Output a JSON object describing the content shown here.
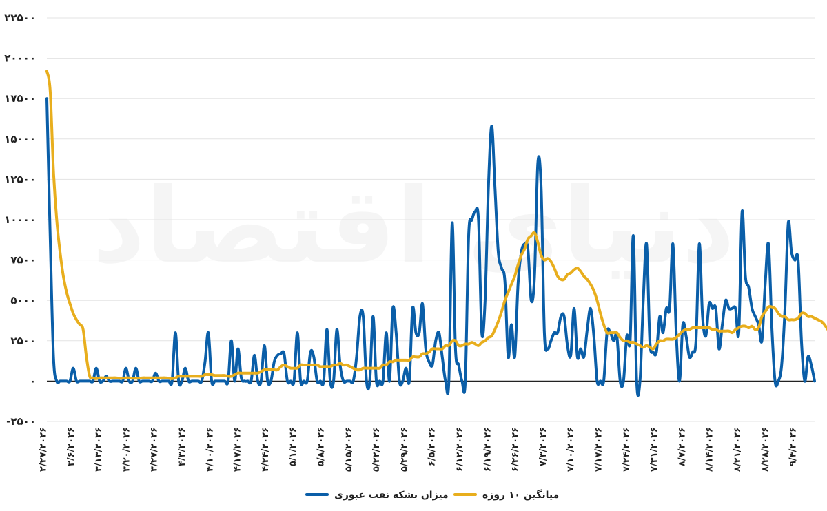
{
  "colors": {
    "blue": "#0A5EA8",
    "gold": "#E8AE1D",
    "grid": "#E3E3E3",
    "axis": "#222222"
  },
  "watermark": "دنیای اقتصاد",
  "chart_data": {
    "type": "line",
    "title": "",
    "xlabel": "",
    "ylabel": "",
    "ylim": [
      -2500,
      22500
    ],
    "grid": true,
    "legend_position": "bottom",
    "y_ticks": [
      -2500,
      0,
      2500,
      5000,
      7500,
      10000,
      12500,
      15000,
      17500,
      20000,
      22500
    ],
    "y_tick_labels": [
      "-۲۵۰۰",
      "۰",
      "۲۵۰۰",
      "۵۰۰۰",
      "۷۵۰۰",
      "۱۰۰۰۰",
      "۱۲۵۰۰",
      "۱۵۰۰۰",
      "۱۷۵۰۰",
      "۲۰۰۰۰",
      "۲۲۵۰۰"
    ],
    "x_tick_labels": [
      "۲/۲۷/۲۰۲۶",
      "۳/۶/۲۰۲۶",
      "۳/۱۳/۲۰۲۶",
      "۳/۲۰/۲۰۲۶",
      "۳/۲۷/۲۰۲۶",
      "۴/۳/۲۰۲۶",
      "۴/۱۰/۲۰۲۶",
      "۴/۱۷/۲۰۲۶",
      "۴/۲۴/۲۰۲۶",
      "۵/۱/۲۰۲۶",
      "۵/۸/۲۰۲۶",
      "۵/۱۵/۲۰۲۶",
      "۵/۲۲/۲۰۲۶",
      "۵/۲۹/۲۰۲۶",
      "۶/۵/۲۰۲۶",
      "۶/۱۲/۲۰۲۶",
      "۶/۱۹/۲۰۲۶",
      "۶/۲۶/۲۰۲۶",
      "۷/۳/۲۰۲۶",
      "۷/۱۰/۲۰۲۶",
      "۷/۱۷/۲۰۲۶",
      "۷/۲۴/۲۰۲۶",
      "۷/۳۱/۲۰۲۶",
      "۸/۷/۲۰۲۶",
      "۸/۱۴/۲۰۲۶",
      "۸/۲۱/۲۰۲۶",
      "۸/۲۸/۲۰۲۶",
      "۹/۴/۲۰۲۶"
    ],
    "series": [
      {
        "name": "میزان بشکه نفت عبوری",
        "color": "#0A5EA8",
        "values": [
          17500,
          9000,
          1500,
          0,
          0,
          0,
          0,
          0,
          800,
          0,
          0,
          0,
          0,
          0,
          0,
          800,
          0,
          0,
          300,
          0,
          0,
          0,
          0,
          0,
          800,
          0,
          0,
          800,
          0,
          0,
          0,
          0,
          0,
          500,
          0,
          0,
          0,
          0,
          0,
          3000,
          0,
          0,
          800,
          0,
          0,
          0,
          0,
          0,
          1200,
          3000,
          0,
          0,
          0,
          0,
          0,
          0,
          2500,
          0,
          2000,
          200,
          0,
          0,
          0,
          1600,
          0,
          0,
          2200,
          0,
          0,
          1200,
          1600,
          1700,
          1700,
          0,
          0,
          0,
          3000,
          0,
          0,
          0,
          1800,
          1500,
          0,
          0,
          0,
          3200,
          0,
          0,
          3200,
          1000,
          0,
          0,
          0,
          0,
          1500,
          4000,
          4000,
          0,
          0,
          4000,
          0,
          0,
          0,
          3000,
          0,
          4500,
          3000,
          0,
          0,
          800,
          0,
          4500,
          3000,
          3000,
          4800,
          2000,
          1200,
          1000,
          2500,
          3000,
          1500,
          0,
          0,
          9800,
          2000,
          1000,
          0,
          0,
          9000,
          10000,
          10500,
          10000,
          3000,
          5000,
          12000,
          15800,
          12000,
          8000,
          7000,
          6200,
          1500,
          3500,
          1500,
          6000,
          8000,
          8500,
          8200,
          5000,
          6500,
          13500,
          12000,
          3000,
          2000,
          2500,
          3000,
          3000,
          4000,
          4000,
          2200,
          1600,
          4500,
          1500,
          2000,
          1500,
          3200,
          4500,
          2800,
          0,
          0,
          0,
          3000,
          3000,
          2500,
          2800,
          0,
          0,
          2800,
          2500,
          9000,
          0,
          0,
          5000,
          8500,
          2500,
          1800,
          1800,
          4000,
          3000,
          4500,
          4500,
          8500,
          3000,
          0,
          3500,
          2800,
          1500,
          1800,
          2500,
          8500,
          4000,
          2800,
          4800,
          4500,
          4500,
          2000,
          3500,
          5000,
          4500,
          4500,
          4500,
          3000,
          10500,
          6500,
          5800,
          4500,
          4000,
          3500,
          2500,
          6000,
          8500,
          3500,
          0,
          0,
          1000,
          4500,
          9800,
          8000,
          7500,
          7500,
          2500,
          0,
          1500,
          1000,
          0
        ]
      },
      {
        "name": "میانگین ۱۰ روزه",
        "color": "#E8AE1D",
        "values": [
          19200,
          18000,
          13000,
          10000,
          8000,
          6500,
          5500,
          4800,
          4200,
          3800,
          3500,
          3200,
          1500,
          300,
          200,
          150,
          200,
          200,
          200,
          200,
          200,
          200,
          180,
          180,
          200,
          200,
          180,
          180,
          180,
          200,
          200,
          200,
          200,
          200,
          200,
          200,
          200,
          180,
          150,
          200,
          300,
          300,
          300,
          300,
          300,
          300,
          300,
          300,
          400,
          400,
          400,
          350,
          350,
          350,
          350,
          300,
          300,
          400,
          500,
          500,
          500,
          500,
          500,
          500,
          500,
          600,
          700,
          700,
          700,
          700,
          700,
          900,
          1000,
          900,
          800,
          800,
          800,
          1000,
          1000,
          1000,
          1000,
          1000,
          1000,
          900,
          900,
          900,
          900,
          1000,
          1000,
          1100,
          1000,
          1000,
          900,
          800,
          700,
          700,
          800,
          800,
          800,
          800,
          800,
          800,
          1000,
          1000,
          1200,
          1200,
          1300,
          1300,
          1300,
          1300,
          1300,
          1500,
          1500,
          1500,
          1700,
          1700,
          1800,
          2000,
          2000,
          2000,
          2000,
          2200,
          2200,
          2500,
          2500,
          2200,
          2200,
          2300,
          2300,
          2400,
          2300,
          2200,
          2400,
          2500,
          2700,
          2800,
          3200,
          3700,
          4300,
          5000,
          5500,
          6000,
          6500,
          7200,
          7800,
          8200,
          8800,
          9000,
          9200,
          8600,
          7800,
          7500,
          7600,
          7400,
          7000,
          6500,
          6300,
          6300,
          6600,
          6700,
          6900,
          7000,
          6800,
          6500,
          6300,
          6000,
          5600,
          5000,
          4200,
          3500,
          3000,
          3000,
          3000,
          3000,
          2700,
          2500,
          2500,
          2400,
          2400,
          2300,
          2200,
          2100,
          2200,
          2100,
          2000,
          2300,
          2500,
          2500,
          2600,
          2600,
          2600,
          2700,
          2900,
          3100,
          3200,
          3200,
          3300,
          3300,
          3300,
          3300,
          3300,
          3300,
          3200,
          3200,
          3100,
          3100,
          3100,
          3100,
          3000,
          3200,
          3300,
          3400,
          3400,
          3300,
          3400,
          3200,
          3300,
          4000,
          4300,
          4600,
          4600,
          4500,
          4200,
          4000,
          4000,
          3800,
          3800,
          3800,
          3900,
          4200,
          4200,
          4000,
          4000,
          3900,
          3800,
          3700,
          3500,
          3200,
          3000,
          2800
        ]
      }
    ]
  },
  "legend": [
    {
      "label": "میانگین ۱۰ روزه",
      "color": "#E8AE1D"
    },
    {
      "label": "میزان بشکه نفت عبوری",
      "color": "#0A5EA8"
    }
  ]
}
